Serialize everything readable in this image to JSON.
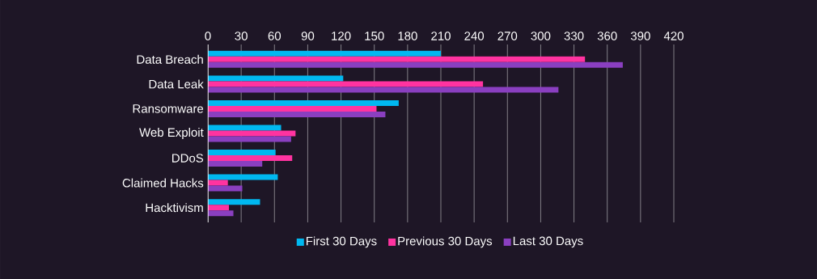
{
  "chart_data": {
    "type": "bar",
    "orientation": "horizontal",
    "categories": [
      "Data Breach",
      "Data Leak",
      "Ransomware",
      "Web Exploit",
      "DDoS",
      "Claimed Hacks",
      "Hacktivism"
    ],
    "series": [
      {
        "name": "First 30 Days",
        "color": "#00b8f0",
        "values": [
          210,
          122,
          172,
          66,
          61,
          63,
          47
        ]
      },
      {
        "name": "Previous 30 Days",
        "color": "#ff33a0",
        "values": [
          340,
          248,
          152,
          79,
          76,
          18,
          19
        ]
      },
      {
        "name": "Last 30 Days",
        "color": "#8a3fc0",
        "values": [
          374,
          316,
          160,
          75,
          49,
          31,
          23
        ]
      }
    ],
    "xlim": [
      0,
      420
    ],
    "xticks": [
      0,
      30,
      60,
      90,
      120,
      150,
      180,
      210,
      240,
      270,
      300,
      330,
      360,
      390,
      420
    ],
    "grid": "x",
    "legend": "bottom"
  }
}
